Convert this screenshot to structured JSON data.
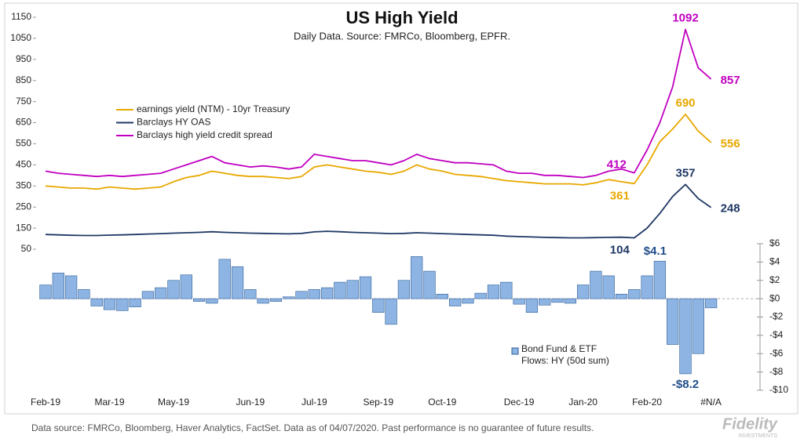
{
  "chart_data": [
    {
      "type": "line",
      "title": "US High Yield",
      "subtitle": "Daily Data.  Source: FMRCo, Bloomberg, EPFR.",
      "ylim": [
        50,
        1150
      ],
      "yticks": [
        50,
        150,
        250,
        350,
        450,
        550,
        650,
        750,
        850,
        950,
        1050,
        1150
      ],
      "series": [
        {
          "name": "earnings yield (NTM) - 10yr Treasury",
          "color": "#e8a800",
          "values": [
            350,
            345,
            340,
            340,
            335,
            345,
            340,
            335,
            340,
            345,
            370,
            390,
            400,
            420,
            410,
            400,
            395,
            395,
            390,
            385,
            395,
            440,
            450,
            440,
            430,
            420,
            415,
            405,
            420,
            450,
            430,
            420,
            405,
            400,
            395,
            385,
            375,
            370,
            365,
            360,
            360,
            360,
            355,
            365,
            380,
            370,
            361,
            450,
            560,
            620,
            690,
            610,
            556
          ],
          "value_labels": [
            null,
            null,
            null,
            null,
            null,
            null,
            null,
            null,
            null,
            null,
            null,
            null,
            null,
            null,
            null,
            null,
            null,
            null,
            null,
            null,
            null,
            null,
            null,
            null,
            null,
            null,
            null,
            null,
            null,
            null,
            null,
            null,
            null,
            null,
            null,
            null,
            null,
            null,
            null,
            null,
            null,
            null,
            null,
            null,
            null,
            null,
            "361",
            null,
            null,
            null,
            "690",
            null,
            "556"
          ]
        },
        {
          "name": "Barclays HY OAS",
          "color": "#1f3864",
          "values": [
            120,
            118,
            116,
            115,
            115,
            117,
            118,
            120,
            122,
            124,
            126,
            128,
            130,
            133,
            130,
            128,
            126,
            125,
            124,
            123,
            125,
            132,
            135,
            133,
            130,
            128,
            126,
            124,
            125,
            128,
            126,
            124,
            122,
            120,
            118,
            116,
            112,
            110,
            108,
            106,
            105,
            104,
            104,
            105,
            106,
            107,
            104,
            150,
            220,
            300,
            357,
            290,
            248
          ],
          "value_labels": [
            null,
            null,
            null,
            null,
            null,
            null,
            null,
            null,
            null,
            null,
            null,
            null,
            null,
            null,
            null,
            null,
            null,
            null,
            null,
            null,
            null,
            null,
            null,
            null,
            null,
            null,
            null,
            null,
            null,
            null,
            null,
            null,
            null,
            null,
            null,
            null,
            null,
            null,
            null,
            null,
            null,
            null,
            null,
            null,
            null,
            null,
            "104",
            null,
            null,
            null,
            "357",
            null,
            "248"
          ]
        },
        {
          "name": "Barclays high yield credit spread",
          "color": "#c000c0",
          "values": [
            420,
            410,
            405,
            400,
            395,
            400,
            395,
            400,
            405,
            410,
            430,
            450,
            470,
            490,
            460,
            450,
            440,
            445,
            440,
            430,
            440,
            500,
            490,
            480,
            470,
            470,
            460,
            450,
            470,
            500,
            480,
            470,
            460,
            460,
            455,
            450,
            420,
            410,
            410,
            400,
            400,
            395,
            390,
            400,
            420,
            430,
            412,
            520,
            650,
            820,
            1092,
            910,
            857
          ],
          "value_labels": [
            null,
            null,
            null,
            null,
            null,
            null,
            null,
            null,
            null,
            null,
            null,
            null,
            null,
            null,
            null,
            null,
            null,
            null,
            null,
            null,
            null,
            null,
            null,
            null,
            null,
            null,
            null,
            null,
            null,
            null,
            null,
            null,
            null,
            null,
            null,
            null,
            null,
            null,
            null,
            null,
            null,
            null,
            null,
            null,
            null,
            null,
            "412",
            null,
            null,
            null,
            "1092",
            null,
            "857"
          ]
        }
      ]
    },
    {
      "type": "bar",
      "categories": [
        "Feb-19",
        null,
        null,
        null,
        null,
        "Mar-19",
        null,
        null,
        null,
        null,
        "May-19",
        null,
        null,
        null,
        null,
        null,
        "Jun-19",
        null,
        null,
        null,
        null,
        "Jul-19",
        null,
        null,
        null,
        null,
        "Sep-19",
        null,
        null,
        null,
        null,
        "Oct-19",
        null,
        null,
        null,
        null,
        null,
        "Dec-19",
        null,
        null,
        null,
        null,
        "Jan-20",
        null,
        null,
        null,
        null,
        "Feb-20",
        null,
        null,
        null,
        null,
        "#N/A"
      ],
      "y2lim": [
        -10,
        6
      ],
      "y2ticks": [
        {
          "value": 6,
          "label": "$6"
        },
        {
          "value": 4,
          "label": "$4"
        },
        {
          "value": 2,
          "label": "$2"
        },
        {
          "value": 0,
          "label": "$0"
        },
        {
          "value": -2,
          "label": "-$2"
        },
        {
          "value": -4,
          "label": "-$4"
        },
        {
          "value": -6,
          "label": "-$6"
        },
        {
          "value": -8,
          "label": "-$8"
        },
        {
          "value": -10,
          "label": "-$10"
        }
      ],
      "series": [
        {
          "name": "Bond Fund & ETF Flows: HY (50d sum)",
          "color": "#8db4e2",
          "axis": "y2",
          "values": [
            1.5,
            2.8,
            2.5,
            1.0,
            -0.8,
            -1.2,
            -1.3,
            -0.9,
            0.8,
            1.2,
            2.0,
            2.6,
            -0.3,
            -0.5,
            4.3,
            3.5,
            1.0,
            -0.5,
            -0.3,
            0.2,
            0.8,
            1.0,
            1.2,
            1.8,
            2.0,
            2.4,
            -1.5,
            -2.8,
            2.0,
            4.6,
            3.0,
            0.5,
            -0.8,
            -0.5,
            0.6,
            1.5,
            1.8,
            -0.6,
            -1.5,
            -0.7,
            -0.4,
            -0.5,
            1.5,
            3.0,
            2.5,
            0.5,
            1.0,
            2.5,
            4.1,
            -5.0,
            -8.2,
            -6.0,
            -1.0
          ],
          "value_labels": [
            null,
            null,
            null,
            null,
            null,
            null,
            null,
            null,
            null,
            null,
            null,
            null,
            null,
            null,
            null,
            null,
            null,
            null,
            null,
            null,
            null,
            null,
            null,
            null,
            null,
            null,
            null,
            null,
            null,
            null,
            null,
            null,
            null,
            null,
            null,
            null,
            null,
            null,
            null,
            null,
            null,
            null,
            null,
            null,
            null,
            null,
            null,
            null,
            "$4.1",
            null,
            "-$8.2",
            null,
            null
          ]
        }
      ]
    }
  ],
  "footer": "Data source: FMRCo, Bloomberg, Haver Analytics, FactSet. Data as of 04/07/2020. Past performance is no guarantee of future results.",
  "logo": {
    "name": "Fidelity",
    "tagline": "INVESTMENTS"
  }
}
